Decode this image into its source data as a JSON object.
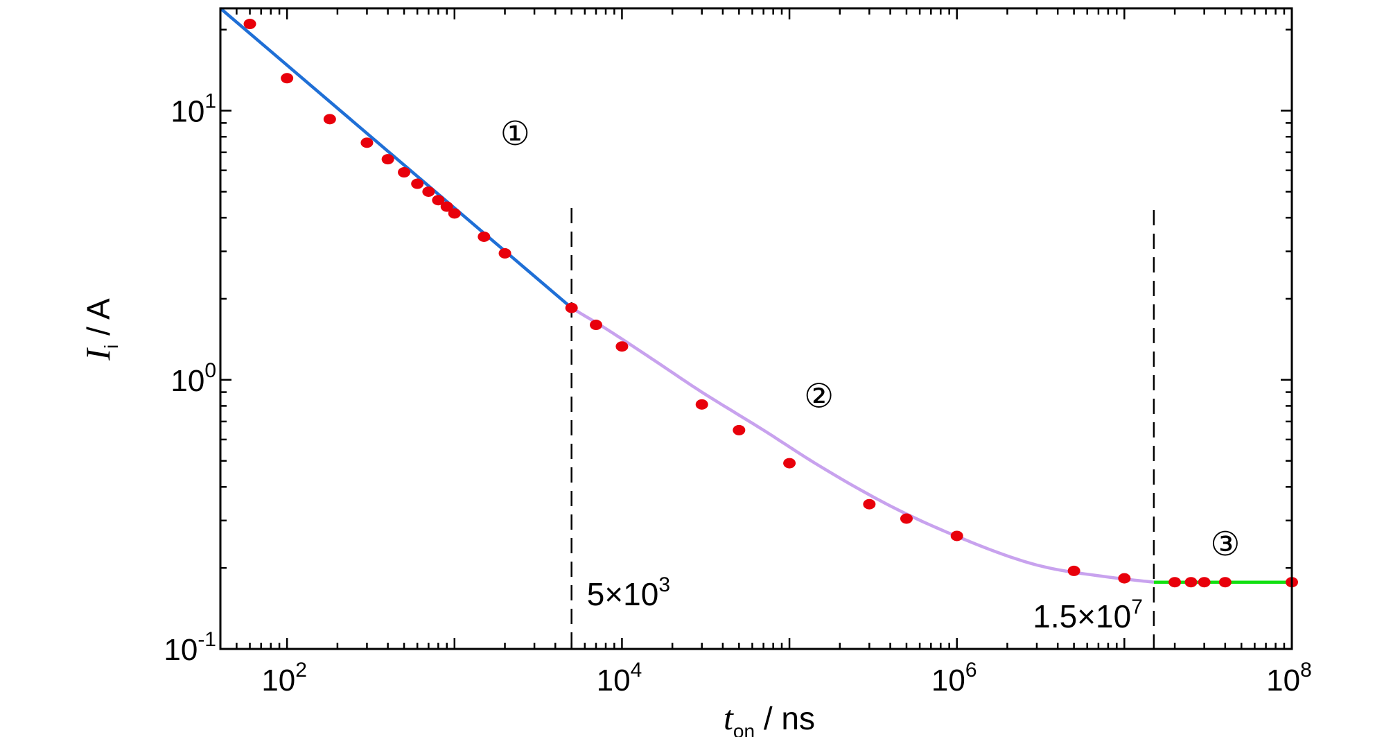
{
  "chart_data": {
    "type": "line",
    "xscale": "log",
    "yscale": "log",
    "xlim": [
      40,
      100000000
    ],
    "ylim": [
      0.1,
      24
    ],
    "xlabel": {
      "main": "t",
      "sub": "on",
      "unit": " / ns"
    },
    "ylabel": {
      "main": "I",
      "sub": "i",
      "unit": " / A"
    },
    "x_ticks": [
      {
        "value": 100,
        "base": "10",
        "exp": "2"
      },
      {
        "value": 10000,
        "base": "10",
        "exp": "4"
      },
      {
        "value": 1000000,
        "base": "10",
        "exp": "6"
      },
      {
        "value": 100000000,
        "base": "10",
        "exp": "8"
      }
    ],
    "y_ticks": [
      {
        "value": 0.1,
        "base": "10",
        "exp": "-1"
      },
      {
        "value": 1,
        "base": "10",
        "exp": "0"
      },
      {
        "value": 10,
        "base": "10",
        "exp": "1"
      }
    ],
    "grid": false,
    "vlines": [
      {
        "x": 5000,
        "label_base": "5×10",
        "label_exp": "3"
      },
      {
        "x": 15000000,
        "label_base": "1.5×10",
        "label_exp": "7"
      }
    ],
    "regions": [
      {
        "label": "①",
        "x": 2300,
        "y": 8.2
      },
      {
        "label": "②",
        "x": 150000,
        "y": 0.87
      },
      {
        "label": "③",
        "x": 40000000,
        "y": 0.245
      }
    ],
    "series": [
      {
        "color": "#1f6fd6",
        "x": [
          40,
          5000
        ],
        "y": [
          24,
          1.85
        ]
      },
      {
        "color": "#c8a2ee",
        "x": [
          5000,
          8000,
          15000,
          30000,
          70000,
          150000,
          400000,
          1000000,
          3000000,
          8000000,
          15000000
        ],
        "y": [
          1.85,
          1.55,
          1.2,
          0.9,
          0.65,
          0.48,
          0.34,
          0.262,
          0.205,
          0.185,
          0.177
        ]
      },
      {
        "color": "#11e011",
        "x": [
          15000000,
          100000000
        ],
        "y": [
          0.177,
          0.177
        ]
      }
    ],
    "points": {
      "color": "#e8000b",
      "x": [
        60,
        100,
        180,
        300,
        400,
        500,
        600,
        700,
        800,
        900,
        1000,
        1500,
        2000,
        5000,
        7000,
        10000,
        30000,
        50000,
        100000,
        300000,
        500000,
        1000000,
        5000000,
        10000000,
        20000000,
        25000000,
        30000000,
        40000000,
        100000000
      ],
      "y": [
        21,
        13.2,
        9.3,
        7.6,
        6.6,
        5.9,
        5.35,
        5.0,
        4.65,
        4.4,
        4.15,
        3.4,
        2.95,
        1.85,
        1.6,
        1.33,
        0.81,
        0.65,
        0.49,
        0.345,
        0.305,
        0.263,
        0.195,
        0.183,
        0.177,
        0.177,
        0.177,
        0.177,
        0.177
      ]
    }
  }
}
